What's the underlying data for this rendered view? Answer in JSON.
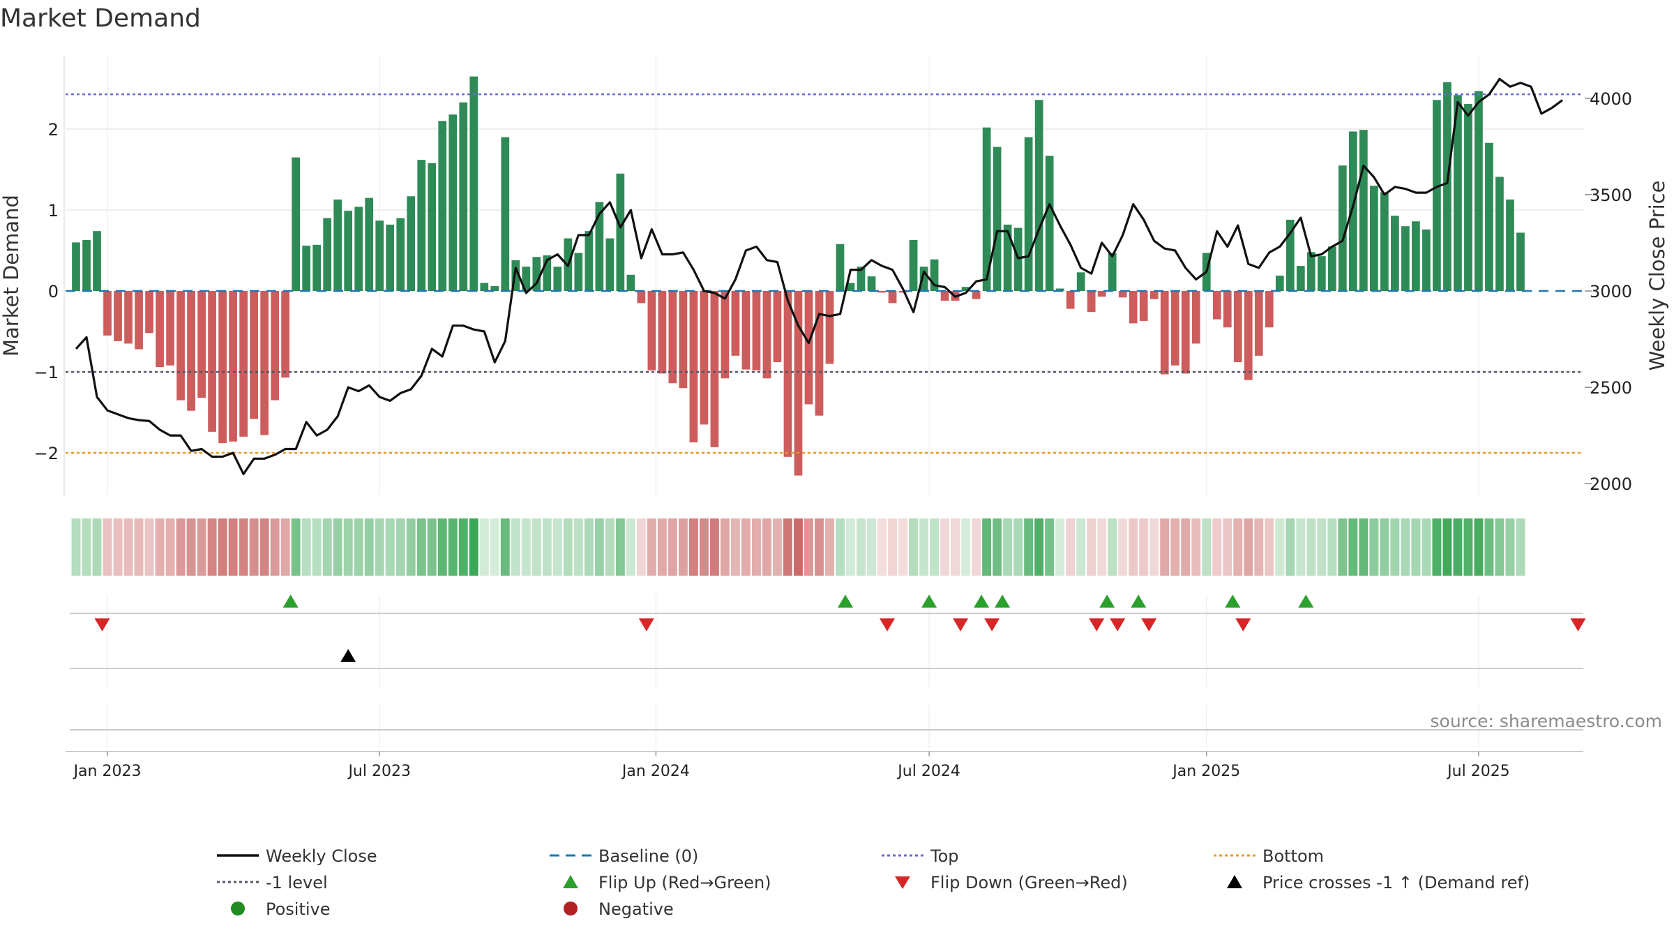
{
  "colors": {
    "positive_bar": "#2e8b57",
    "negative_bar": "#cd5c5c",
    "line": "#111111",
    "baseline": "#1f77b4",
    "top": "#6a6acf",
    "minus_one": "#555566",
    "bottom": "#e69a28",
    "flip_up": "#2ca02c",
    "flip_down": "#d62728",
    "cross": "#000000",
    "dot_positive": "#228b22",
    "dot_negative": "#b22222",
    "grid": "#e9e9e9",
    "source": "#8a8a8a"
  },
  "chart_data": {
    "type": "bar+line",
    "title": "Market Demand",
    "ylabel_left": "Market Demand",
    "ylabel_right": "Weekly Close Price",
    "source": "source: sharemaestro.com",
    "x_start_week_index": 0,
    "x_range_weeks": [
      -1,
      144
    ],
    "date_ticks": [
      {
        "label": "Jan 2023",
        "week": 3
      },
      {
        "label": "Jul 2023",
        "week": 29
      },
      {
        "label": "Jan 2024",
        "week": 55.4
      },
      {
        "label": "Jul 2024",
        "week": 81.5
      },
      {
        "label": "Jan 2025",
        "week": 108
      },
      {
        "label": "Jul 2025",
        "week": 134
      }
    ],
    "left_axis": {
      "ylim": [
        -2.55,
        2.9
      ],
      "ticks": [
        -2,
        -1,
        0,
        1,
        2
      ],
      "tick_labels": [
        "−2",
        "−1",
        "0",
        "1",
        "2"
      ]
    },
    "right_axis": {
      "ylim": [
        1900,
        4200
      ],
      "ticks": [
        2000,
        2500,
        3000,
        3500,
        4000
      ],
      "tick_labels": [
        "2000",
        "2500",
        "3000",
        "3500",
        "4000"
      ]
    },
    "reference_lines": {
      "top": 2.43,
      "minus_one": -1.0,
      "bottom": -2.0,
      "baseline": 0
    },
    "demand": [
      0.6,
      0.63,
      0.74,
      -0.55,
      -0.62,
      -0.65,
      -0.72,
      -0.52,
      -0.94,
      -0.92,
      -1.35,
      -1.48,
      -1.32,
      -1.74,
      -1.88,
      -1.86,
      -1.8,
      -1.58,
      -1.78,
      -1.35,
      -1.07,
      1.65,
      0.56,
      0.57,
      0.9,
      1.13,
      0.99,
      1.04,
      1.15,
      0.87,
      0.82,
      0.9,
      1.17,
      1.62,
      1.58,
      2.1,
      2.18,
      2.33,
      2.65,
      0.1,
      0.06,
      1.9,
      0.38,
      0.3,
      0.42,
      0.44,
      0.3,
      0.65,
      0.47,
      0.74,
      1.1,
      0.65,
      1.45,
      0.2,
      -0.15,
      -0.98,
      -1.02,
      -1.14,
      -1.2,
      -1.87,
      -1.65,
      -1.93,
      -1.08,
      -0.8,
      -0.97,
      -0.98,
      -1.08,
      -0.88,
      -2.05,
      -2.28,
      -1.4,
      -1.54,
      -0.9,
      0.58,
      0.1,
      0.3,
      0.18,
      -0.02,
      -0.15,
      -0.02,
      0.63,
      0.3,
      0.39,
      -0.12,
      -0.12,
      0.05,
      -0.1,
      2.02,
      1.78,
      0.82,
      0.78,
      1.9,
      2.36,
      1.67,
      0.03,
      -0.22,
      0.23,
      -0.26,
      -0.07,
      0.47,
      -0.08,
      -0.4,
      -0.37,
      -0.1,
      -1.03,
      -0.92,
      -1.02,
      -0.65,
      0.47,
      -0.35,
      -0.45,
      -0.88,
      -1.1,
      -0.8,
      -0.45,
      0.19,
      0.88,
      0.31,
      0.48,
      0.43,
      0.55,
      1.55,
      1.97,
      1.99,
      1.3,
      1.22,
      0.93,
      0.8,
      0.86,
      0.76,
      2.36,
      2.58,
      2.42,
      2.31,
      2.47,
      1.83,
      1.41,
      1.13,
      0.72
    ],
    "weekly_close": [
      2700,
      2760,
      2450,
      2380,
      2360,
      2340,
      2330,
      2325,
      2280,
      2250,
      2250,
      2170,
      2180,
      2140,
      2140,
      2160,
      2050,
      2130,
      2130,
      2150,
      2180,
      2180,
      2320,
      2250,
      2280,
      2350,
      2500,
      2480,
      2510,
      2450,
      2430,
      2470,
      2490,
      2560,
      2700,
      2660,
      2820,
      2820,
      2800,
      2790,
      2630,
      2740,
      3120,
      2990,
      3040,
      3160,
      3190,
      3130,
      3290,
      3290,
      3400,
      3460,
      3330,
      3420,
      3170,
      3320,
      3190,
      3190,
      3200,
      3110,
      3000,
      2990,
      2960,
      3060,
      3210,
      3230,
      3160,
      3150,
      2950,
      2820,
      2730,
      2880,
      2870,
      2880,
      3110,
      3110,
      3160,
      3130,
      3110,
      3010,
      2890,
      3100,
      3030,
      3020,
      2970,
      2990,
      3050,
      3060,
      3310,
      3310,
      3170,
      3180,
      3320,
      3450,
      3340,
      3240,
      3120,
      3090,
      3250,
      3180,
      3290,
      3450,
      3370,
      3260,
      3220,
      3210,
      3120,
      3060,
      3100,
      3310,
      3230,
      3340,
      3140,
      3120,
      3200,
      3230,
      3300,
      3380,
      3180,
      3190,
      3230,
      3260,
      3440,
      3650,
      3590,
      3500,
      3540,
      3530,
      3510,
      3510,
      3540,
      3560,
      3980,
      3910,
      3980,
      4020,
      4100,
      4060,
      4080,
      4060,
      3920,
      3950,
      3990
    ],
    "flip_up_weeks": [
      20.5,
      73.5,
      81.5,
      86.5,
      88.5,
      98.5,
      101.5,
      110.5,
      117.5
    ],
    "flip_down_weeks": [
      2.5,
      54.5,
      77.5,
      84.5,
      87.5,
      97.5,
      99.5,
      102.5,
      111.5,
      143.5
    ],
    "cross_weeks": [
      26
    ],
    "legend": [
      {
        "label": "Weekly Close",
        "kind": "solid-line",
        "color": "line"
      },
      {
        "label": "Baseline (0)",
        "kind": "dashed-line",
        "color": "baseline"
      },
      {
        "label": "Top",
        "kind": "dotted-line",
        "color": "top"
      },
      {
        "label": "Bottom",
        "kind": "dotted-line",
        "color": "bottom"
      },
      {
        "label": "-1 level",
        "kind": "dotted-line",
        "color": "minus_one"
      },
      {
        "label": "Flip Up (Red→Green)",
        "kind": "triangle-up",
        "color": "flip_up"
      },
      {
        "label": "Flip Down (Green→Red)",
        "kind": "triangle-down",
        "color": "flip_down"
      },
      {
        "label": "Price crosses -1 ↑ (Demand ref)",
        "kind": "triangle-up",
        "color": "cross"
      },
      {
        "label": "Positive",
        "kind": "dot",
        "color": "dot_positive"
      },
      {
        "label": "Negative",
        "kind": "dot",
        "color": "dot_negative"
      }
    ]
  }
}
